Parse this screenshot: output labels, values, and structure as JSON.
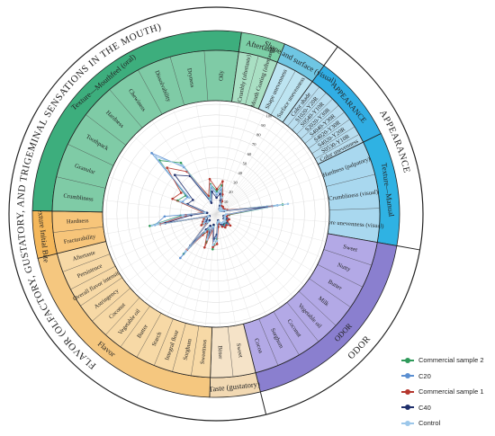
{
  "chart_data": {
    "type": "radar",
    "title": "",
    "outer_ring": [
      {
        "label": "FLAVOR (OLFACTORY, GUSTATORY, AND TRIGEMINAL SENSATIONS IN THE MOUTH)",
        "start": 166,
        "end": 396
      },
      {
        "label": "APPEARANCE",
        "start": 36,
        "end": 100
      },
      {
        "label": "ODOR",
        "start": 100,
        "end": 166
      }
    ],
    "sectors": [
      {
        "id": "appearance",
        "label": "APPEARANCE",
        "group_label": "Color",
        "color": "#31aee4",
        "inner_color": "#b9def0",
        "attributes": [
          "Color shade",
          "S1020-Y20R",
          "S0540-Y10R",
          "S2020-Y30R",
          "S4040-Y30R",
          "S4020-Y30R",
          "S4020-Y20R",
          "S0530-Y10R",
          "Color unevenness"
        ]
      },
      {
        "id": "texture_manual",
        "label": "Texture—Manual",
        "group_label": "",
        "color": "#2fb2e3",
        "inner_color": "#a9d8ef",
        "attributes": [
          "Hardness (palpatory)",
          "Crumbliness (visual)",
          "Pore unevenness (visual)"
        ]
      },
      {
        "id": "odor",
        "label": "ODOR",
        "group_label": "Nasal",
        "color": "#8a7fcf",
        "inner_color": "#b3a9e6",
        "attributes": [
          "Sweet",
          "Nutty",
          "Butter",
          "Milk",
          "Vegetable oil",
          "Coconut",
          "Sorghum",
          "Cocoa"
        ]
      },
      {
        "id": "taste",
        "label": "Taste (gustatory)",
        "group_label": "",
        "color": "#f2d9b3",
        "inner_color": "#f5e3c8",
        "attributes": [
          "Sweet",
          "Bitter"
        ]
      },
      {
        "id": "flavor",
        "label": "Flavor",
        "group_label": "",
        "color": "#f5c77f",
        "inner_color": "#f7d9a6",
        "attributes": [
          "Sweetness",
          "Sorghum",
          "Integral flour",
          "Starch",
          "Butter",
          "Vegetable oil",
          "Coconut",
          "Astringency",
          "Overall flavor intensity",
          "Persistence",
          "Aftertaste"
        ]
      },
      {
        "id": "texture_initial",
        "label": "Texture Initial Bite",
        "group_label": "",
        "color": "#f4b75a",
        "inner_color": "#f7c57a",
        "attributes": [
          "Fracturability",
          "Hardness"
        ]
      },
      {
        "id": "texture_mouthfeel",
        "label": "Texture—Mouthfeel (oral)",
        "group_label": "",
        "color": "#3dae7d",
        "inner_color": "#7fcba6",
        "attributes": [
          "Crumbliness",
          "Granular",
          "Toothpack",
          "Hardness",
          "Chewiness",
          "Dissolvability",
          "Dryness",
          "Oily"
        ]
      },
      {
        "id": "aftertaste",
        "label": "Aftertaste",
        "group_label": "",
        "color": "#7ccfa6",
        "inner_color": "#a9dfc3",
        "attributes": [
          "Crumbly (aftertaste)",
          "Oily Mouth Coating (aftertaste)"
        ]
      },
      {
        "id": "shape",
        "label": "Shape and surface (visual)",
        "group_label": "",
        "color": "#6fc6e3",
        "inner_color": "#bde4f1",
        "attributes": [
          "Shape unevenness",
          "Surface unevenness"
        ]
      }
    ],
    "radial_axis": {
      "min": 0,
      "max": 100,
      "ticks": [
        10,
        20,
        30,
        40,
        50,
        60,
        70,
        80,
        90,
        100
      ]
    },
    "series": [
      {
        "name": "Commercial sample 2",
        "color": "#2f9a5a",
        "values": [
          4,
          3,
          5,
          3,
          4,
          3,
          4,
          3,
          5,
          7,
          60,
          9,
          6,
          8,
          7,
          10,
          8,
          9,
          8,
          4,
          6,
          20,
          30,
          8,
          25,
          12,
          18,
          45,
          8,
          12,
          10,
          8,
          5,
          60,
          30,
          8,
          35,
          30,
          70,
          55,
          12,
          25,
          18,
          24,
          14,
          8,
          5
        ]
      },
      {
        "name": "C20",
        "color": "#5b8fd1",
        "values": [
          3,
          4,
          4,
          2,
          3,
          2,
          3,
          2,
          4,
          6,
          55,
          7,
          5,
          9,
          6,
          12,
          10,
          11,
          9,
          5,
          8,
          18,
          22,
          10,
          20,
          10,
          15,
          50,
          6,
          10,
          8,
          7,
          4,
          55,
          45,
          6,
          30,
          28,
          80,
          50,
          10,
          22,
          15,
          20,
          12,
          6,
          4
        ]
      },
      {
        "name": "Commercial sample 1",
        "color": "#b5372e",
        "values": [
          5,
          4,
          6,
          4,
          5,
          4,
          5,
          4,
          6,
          8,
          50,
          8,
          7,
          10,
          9,
          14,
          11,
          12,
          10,
          6,
          9,
          25,
          28,
          12,
          30,
          15,
          20,
          40,
          9,
          14,
          11,
          9,
          6,
          50,
          25,
          9,
          40,
          35,
          60,
          45,
          15,
          30,
          20,
          28,
          16,
          10,
          6
        ]
      },
      {
        "name": "C40",
        "color": "#1f2f6b",
        "values": [
          2,
          3,
          3,
          2,
          2,
          2,
          2,
          3,
          3,
          5,
          45,
          6,
          4,
          7,
          5,
          9,
          7,
          8,
          7,
          3,
          5,
          16,
          20,
          7,
          18,
          9,
          14,
          35,
          5,
          9,
          7,
          6,
          3,
          45,
          20,
          5,
          25,
          22,
          50,
          40,
          8,
          18,
          12,
          16,
          10,
          5,
          3
        ]
      },
      {
        "name": "Control",
        "color": "#9cc7ea",
        "values": [
          3,
          2,
          4,
          2,
          3,
          2,
          3,
          2,
          4,
          6,
          65,
          6,
          5,
          6,
          6,
          8,
          7,
          7,
          6,
          4,
          5,
          22,
          26,
          9,
          22,
          11,
          16,
          42,
          7,
          11,
          9,
          7,
          4,
          58,
          28,
          7,
          32,
          26,
          75,
          52,
          11,
          24,
          16,
          22,
          13,
          7,
          4
        ]
      }
    ],
    "legend_position": "bottom-right",
    "grid": true
  }
}
